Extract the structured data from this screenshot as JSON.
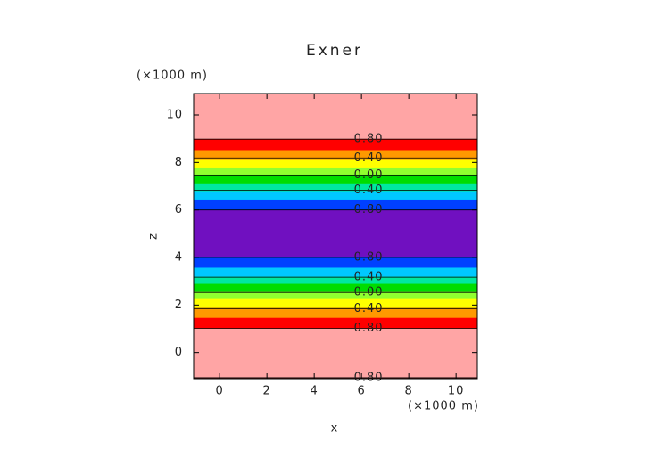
{
  "chart_data": {
    "type": "contour",
    "title": "Exner",
    "x_label": "x",
    "y_label": "z",
    "x_unit": "(×1000 m)",
    "y_unit": "(×1000 m)",
    "xlim": [
      -1.1,
      10.9
    ],
    "ylim": [
      -1.1,
      10.9
    ],
    "xticks": [
      0,
      2,
      4,
      6,
      8,
      10
    ],
    "yticks": [
      0,
      2,
      4,
      6,
      8,
      10
    ],
    "bands": [
      {
        "y0": -1.1,
        "y1": -1.06,
        "color": "#ff0000"
      },
      {
        "y0": -1.06,
        "y1": 1.02,
        "color": "#ffa5a5"
      },
      {
        "y0": 1.02,
        "y1": 1.47,
        "color": "#ff0000"
      },
      {
        "y0": 1.47,
        "y1": 1.89,
        "color": "#ff9900"
      },
      {
        "y0": 1.89,
        "y1": 2.26,
        "color": "#ffff00"
      },
      {
        "y0": 2.26,
        "y1": 2.57,
        "color": "#90ff30"
      },
      {
        "y0": 2.57,
        "y1": 2.9,
        "color": "#00dd00"
      },
      {
        "y0": 2.9,
        "y1": 3.2,
        "color": "#00e8a0"
      },
      {
        "y0": 3.2,
        "y1": 3.58,
        "color": "#00c8ff"
      },
      {
        "y0": 3.58,
        "y1": 4.0,
        "color": "#0040ff"
      },
      {
        "y0": 4.0,
        "y1": 6.0,
        "color": "#7010c0"
      },
      {
        "y0": 6.0,
        "y1": 6.45,
        "color": "#0040ff"
      },
      {
        "y0": 6.45,
        "y1": 6.8,
        "color": "#00c8ff"
      },
      {
        "y0": 6.8,
        "y1": 7.13,
        "color": "#00e8a0"
      },
      {
        "y0": 7.13,
        "y1": 7.5,
        "color": "#00dd00"
      },
      {
        "y0": 7.5,
        "y1": 7.8,
        "color": "#90ff30"
      },
      {
        "y0": 7.8,
        "y1": 8.11,
        "color": "#ffff00"
      },
      {
        "y0": 8.11,
        "y1": 8.53,
        "color": "#ff9900"
      },
      {
        "y0": 8.53,
        "y1": 8.98,
        "color": "#ff0000"
      },
      {
        "y0": 8.98,
        "y1": 10.9,
        "color": "#ffa5a5"
      }
    ],
    "contours": [
      {
        "y": 8.98,
        "label": "0.80"
      },
      {
        "y": 8.19,
        "label": "0.40"
      },
      {
        "y": 7.47,
        "label": "0.00"
      },
      {
        "y": 6.83,
        "label": "0.40"
      },
      {
        "y": 6.0,
        "label": "0.80"
      },
      {
        "y": 4.0,
        "label": "0.80"
      },
      {
        "y": 3.17,
        "label": "0.40"
      },
      {
        "y": 2.53,
        "label": "0.00"
      },
      {
        "y": 1.85,
        "label": "0.40"
      },
      {
        "y": 1.02,
        "label": "0.80"
      },
      {
        "y": -1.06,
        "label": "0.80"
      }
    ]
  }
}
